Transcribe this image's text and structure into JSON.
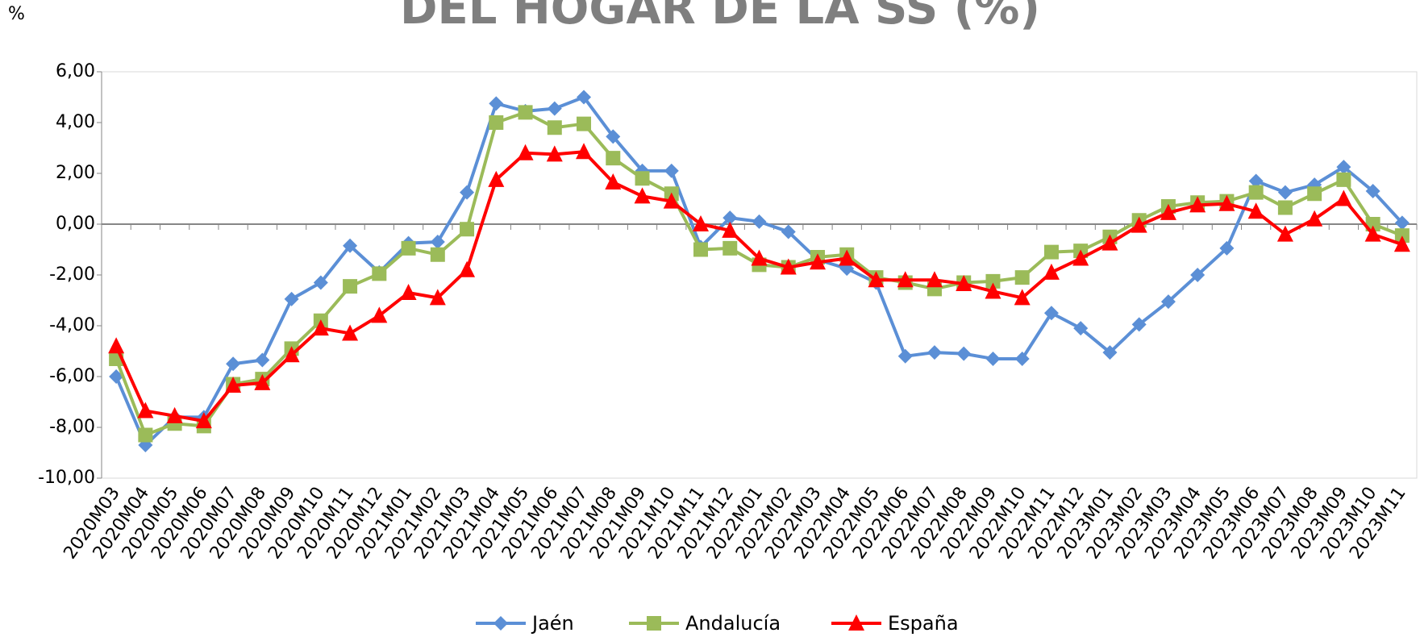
{
  "chart_data": {
    "type": "line",
    "title": "DEL HOGAR DE LA SS (%)",
    "unit_label": "%",
    "categories": [
      "2020M03",
      "2020M04",
      "2020M05",
      "2020M06",
      "2020M07",
      "2020M08",
      "2020M09",
      "2020M10",
      "2020M11",
      "2020M12",
      "2021M01",
      "2021M02",
      "2021M03",
      "2021M04",
      "2021M05",
      "2021M06",
      "2021M07",
      "2021M08",
      "2021M09",
      "2021M10",
      "2021M11",
      "2021M12",
      "2022M01",
      "2022M02",
      "2022M03",
      "2022M04",
      "2022M05",
      "2022M06",
      "2022M07",
      "2022M08",
      "2022M09",
      "2022M10",
      "2022M11",
      "2022M12",
      "2023M01",
      "2023M02",
      "2023M03",
      "2023M04",
      "2023M05",
      "2023M06",
      "2023M07",
      "2023M08",
      "2023M09",
      "2023M10",
      "2023M11"
    ],
    "series": [
      {
        "name": "Jaén",
        "color": "#5b8fd6",
        "marker": "diamond",
        "values": [
          -6.0,
          -8.7,
          -7.6,
          -7.6,
          -5.5,
          -5.35,
          -2.95,
          -2.3,
          -0.85,
          -1.9,
          -0.75,
          -0.7,
          1.25,
          4.75,
          4.45,
          4.55,
          5.0,
          3.45,
          2.1,
          2.1,
          -0.9,
          0.25,
          0.1,
          -0.3,
          -1.4,
          -1.75,
          -2.3,
          -5.2,
          -5.05,
          -5.1,
          -5.3,
          -5.3,
          -3.5,
          -4.1,
          -5.05,
          -3.95,
          -3.05,
          -2.0,
          -0.95,
          1.7,
          1.25,
          1.55,
          2.25,
          1.3,
          0.05
        ]
      },
      {
        "name": "Andalucía",
        "color": "#9bbb59",
        "marker": "square",
        "values": [
          -5.3,
          -8.3,
          -7.85,
          -7.95,
          -6.3,
          -6.1,
          -4.9,
          -3.8,
          -2.45,
          -1.95,
          -0.95,
          -1.2,
          -0.2,
          4.0,
          4.4,
          3.8,
          3.95,
          2.6,
          1.8,
          1.2,
          -1.0,
          -0.95,
          -1.6,
          -1.7,
          -1.3,
          -1.2,
          -2.1,
          -2.3,
          -2.55,
          -2.3,
          -2.25,
          -2.1,
          -1.1,
          -1.05,
          -0.5,
          0.15,
          0.7,
          0.85,
          0.9,
          1.25,
          0.65,
          1.2,
          1.75,
          0.0,
          -0.45
        ]
      },
      {
        "name": "España",
        "color": "#ff0000",
        "marker": "triangle",
        "values": [
          -4.8,
          -7.35,
          -7.55,
          -7.75,
          -6.35,
          -6.25,
          -5.15,
          -4.1,
          -4.3,
          -3.6,
          -2.7,
          -2.9,
          -1.8,
          1.75,
          2.8,
          2.75,
          2.85,
          1.65,
          1.1,
          0.9,
          0.0,
          -0.25,
          -1.35,
          -1.7,
          -1.5,
          -1.35,
          -2.2,
          -2.2,
          -2.2,
          -2.35,
          -2.65,
          -2.9,
          -1.9,
          -1.35,
          -0.75,
          -0.05,
          0.45,
          0.75,
          0.8,
          0.5,
          -0.4,
          0.2,
          1.0,
          -0.4,
          -0.8
        ]
      }
    ],
    "ylim": [
      -10,
      6
    ],
    "yticks": [
      {
        "value": -10,
        "label": "-10,00"
      },
      {
        "value": -8,
        "label": "-8,00"
      },
      {
        "value": -6,
        "label": "-6,00"
      },
      {
        "value": -4,
        "label": "-4,00"
      },
      {
        "value": -2,
        "label": "-2,00"
      },
      {
        "value": 0,
        "label": "0,00"
      },
      {
        "value": 2,
        "label": "2,00"
      },
      {
        "value": 4,
        "label": "4,00"
      },
      {
        "value": 6,
        "label": "6,00"
      }
    ],
    "grid": false,
    "legend": "bottom"
  }
}
